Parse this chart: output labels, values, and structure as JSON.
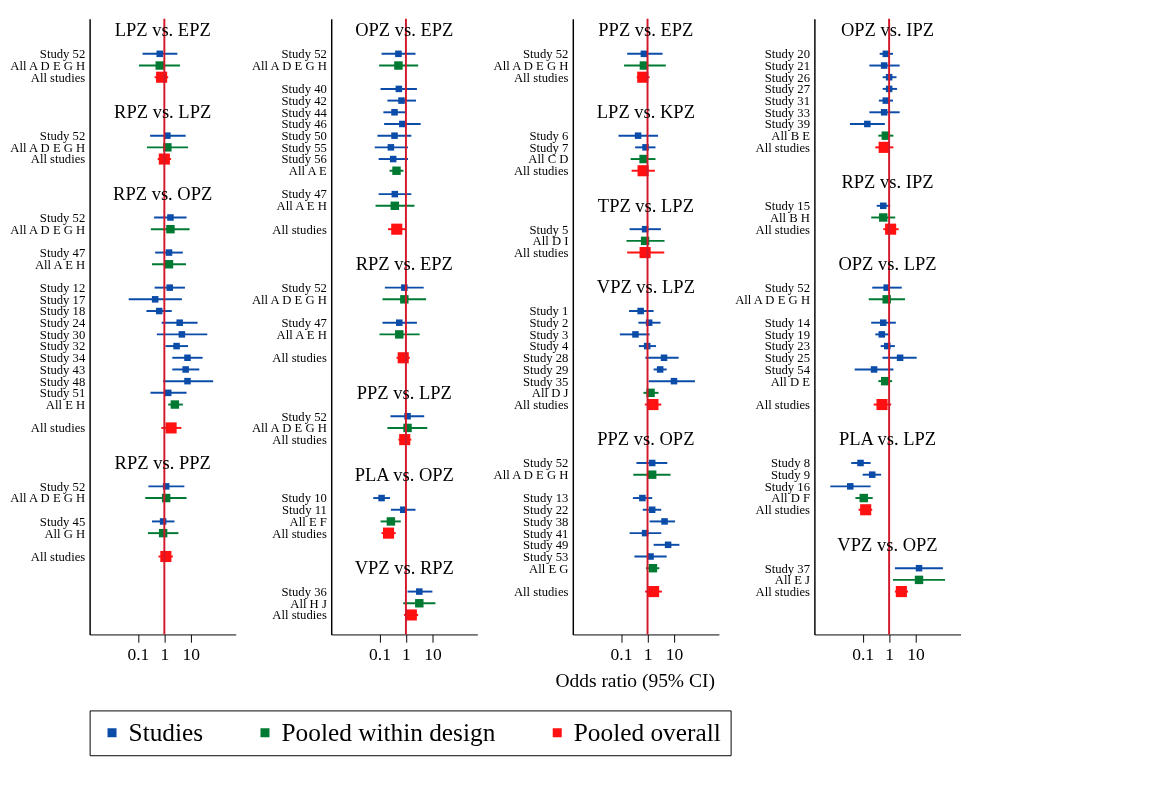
{
  "chart_data": [
    {
      "type": "scatter",
      "orientation": "horizontal",
      "log": "x",
      "marker": "square",
      "legend": "bottom",
      "xlim": [
        0.0015,
        500
      ],
      "xticks": [
        0.1,
        1,
        10
      ],
      "ref_lines": [
        {
          "axis": "x",
          "value": 1,
          "color": "#d2192b"
        }
      ],
      "annotations": [
        "LPZ vs. EPZ",
        "RPZ vs. LPZ",
        "RPZ vs. OPZ",
        "RPZ vs. PPZ"
      ],
      "categories": [
        null,
        null,
        "Study 52",
        "All A D E G H",
        "All studies",
        null,
        null,
        null,
        null,
        "Study 52",
        "All A D E G H",
        "All studies",
        null,
        null,
        null,
        null,
        "Study 52",
        "All A D E G H",
        null,
        "Study 47",
        "All A E H",
        null,
        "Study 12",
        "Study 17",
        "Study 18",
        "Study 24",
        "Study 30",
        "Study 32",
        "Study 34",
        "Study 43",
        "Study 48",
        "Study 51",
        "All E H",
        null,
        "All studies",
        null,
        null,
        null,
        null,
        "Study 52",
        "All A D E G H",
        null,
        "Study 45",
        "All G H",
        null,
        "All studies"
      ],
      "series": [
        {
          "name": "Studies",
          "color": "#0a4ca8",
          "values": [
            null,
            null,
            0.67,
            null,
            null,
            null,
            null,
            null,
            null,
            1.3,
            null,
            null,
            null,
            null,
            null,
            null,
            1.7,
            null,
            null,
            1.5,
            null,
            null,
            1.6,
            0.45,
            0.64,
            3.8,
            4.6,
            2.9,
            7.5,
            6.4,
            7.5,
            1.4,
            null,
            null,
            null,
            null,
            null,
            null,
            null,
            1.17,
            null,
            null,
            0.9,
            null,
            null,
            null
          ],
          "errors": [
            null,
            null,
            [
              0.15,
              3.1
            ],
            null,
            null,
            null,
            null,
            null,
            null,
            [
              0.29,
              6.4
            ],
            null,
            null,
            null,
            null,
            null,
            null,
            [
              0.41,
              6.9
            ],
            null,
            null,
            [
              0.45,
              5.0
            ],
            null,
            null,
            [
              0.43,
              6.0
            ],
            [
              0.045,
              4.6
            ],
            [
              0.21,
              1.9
            ],
            [
              0.79,
              18
            ],
            [
              0.52,
              42
            ],
            [
              1.1,
              7.9
            ],
            [
              2.0,
              28
            ],
            [
              2.0,
              21
            ],
            [
              0.9,
              70
            ],
            [
              0.3,
              6.9
            ],
            null,
            null,
            null,
            null,
            null,
            null,
            null,
            [
              0.25,
              5.7
            ],
            null,
            null,
            [
              0.34,
              2.4
            ],
            null,
            null,
            null
          ]
        },
        {
          "name": "Pooled within design",
          "color": "#007a33",
          "values": [
            null,
            null,
            null,
            0.67,
            null,
            null,
            null,
            null,
            null,
            null,
            1.3,
            null,
            null,
            null,
            null,
            null,
            null,
            1.7,
            null,
            null,
            1.5,
            null,
            null,
            null,
            null,
            null,
            null,
            null,
            null,
            null,
            null,
            null,
            2.5,
            null,
            null,
            null,
            null,
            null,
            null,
            null,
            1.17,
            null,
            null,
            0.9,
            null,
            null
          ],
          "errors": [
            null,
            null,
            null,
            [
              0.11,
              3.9
            ],
            null,
            null,
            null,
            null,
            null,
            null,
            [
              0.22,
              7.9
            ],
            null,
            null,
            null,
            null,
            null,
            null,
            [
              0.31,
              9.0
            ],
            null,
            null,
            [
              0.34,
              6.6
            ],
            null,
            null,
            null,
            null,
            null,
            null,
            null,
            null,
            null,
            null,
            null,
            [
              1.4,
              5.0
            ],
            null,
            null,
            null,
            null,
            null,
            null,
            null,
            [
              0.19,
              6.9
            ],
            null,
            null,
            [
              0.24,
              3.4
            ],
            null,
            null
          ]
        },
        {
          "name": "Pooled overall",
          "color": "#ff1111",
          "values": [
            null,
            null,
            null,
            null,
            0.79,
            null,
            null,
            null,
            null,
            null,
            null,
            1.0,
            null,
            null,
            null,
            null,
            null,
            null,
            null,
            null,
            null,
            null,
            null,
            null,
            null,
            null,
            null,
            null,
            null,
            null,
            null,
            null,
            null,
            null,
            1.8,
            null,
            null,
            null,
            null,
            null,
            null,
            null,
            null,
            null,
            null,
            1.14
          ],
          "errors": [
            null,
            null,
            null,
            null,
            [
              0.43,
              1.4
            ],
            null,
            null,
            null,
            null,
            null,
            null,
            [
              0.56,
              1.8
            ],
            null,
            null,
            null,
            null,
            null,
            null,
            null,
            null,
            null,
            null,
            null,
            null,
            null,
            null,
            null,
            null,
            null,
            null,
            null,
            null,
            null,
            null,
            [
              0.77,
              4.4
            ],
            null,
            null,
            null,
            null,
            null,
            null,
            null,
            null,
            null,
            null,
            [
              0.6,
              2.1
            ]
          ]
        }
      ]
    },
    {
      "type": "scatter",
      "orientation": "horizontal",
      "log": "x",
      "marker": "square",
      "legend": "bottom",
      "xlabel": "Odds ratio (95% CI)",
      "xlim": [
        0.0015,
        500
      ],
      "xticks": [
        0.1,
        1,
        10
      ],
      "ref_lines": [
        {
          "axis": "x",
          "value": 1,
          "color": "#d2192b"
        }
      ],
      "annotations": [
        "OPZ vs. EPZ",
        "RPZ vs. EPZ",
        "PPZ vs. LPZ",
        "PLA vs. OPZ",
        "VPZ vs. RPZ"
      ],
      "categories": [
        null,
        null,
        "Study 52",
        "All A D E G H",
        null,
        "Study 40",
        "Study 42",
        "Study 44",
        "Study 46",
        "Study 50",
        "Study 55",
        "Study 56",
        "All A E",
        null,
        "Study 47",
        "All A E H",
        null,
        "All studies",
        null,
        null,
        null,
        null,
        "Study 52",
        "All A D E G H",
        null,
        "Study 47",
        "All A E H",
        null,
        "All studies",
        null,
        null,
        null,
        null,
        "Study 52",
        "All A D E G H",
        "All studies",
        null,
        null,
        null,
        null,
        "Study 10",
        "Study 11",
        "All E F",
        "All studies",
        null,
        null,
        null,
        null,
        "Study 36",
        "All H J",
        "All studies"
      ],
      "series": [
        {
          "name": "Studies",
          "color": "#0a4ca8",
          "values": [
            null,
            null,
            0.52,
            null,
            null,
            0.54,
            0.68,
            0.37,
            0.73,
            0.37,
            0.27,
            0.33,
            null,
            null,
            0.38,
            null,
            null,
            null,
            null,
            null,
            null,
            null,
            0.87,
            null,
            null,
            0.56,
            null,
            null,
            null,
            null,
            null,
            null,
            null,
            1.15,
            null,
            null,
            null,
            null,
            null,
            null,
            0.12,
            0.79,
            null,
            null,
            null,
            null,
            null,
            null,
            3.2,
            null,
            null
          ],
          "errors": [
            null,
            null,
            [
              0.12,
              2.3
            ],
            null,
            null,
            [
              0.11,
              2.6
            ],
            [
              0.2,
              2.4
            ],
            [
              0.14,
              1.0
            ],
            [
              0.15,
              3.6
            ],
            [
              0.084,
              1.6
            ],
            [
              0.066,
              1.2
            ],
            [
              0.093,
              1.2
            ],
            null,
            null,
            [
              0.093,
              1.6
            ],
            null,
            null,
            null,
            null,
            null,
            null,
            null,
            [
              0.16,
              4.7
            ],
            null,
            null,
            [
              0.13,
              2.6
            ],
            null,
            null,
            null,
            null,
            null,
            null,
            null,
            [
              0.26,
              4.9
            ],
            null,
            null,
            null,
            null,
            null,
            null,
            [
              0.058,
              0.25
            ],
            [
              0.27,
              2.3
            ],
            null,
            null,
            null,
            null,
            null,
            null,
            [
              1.15,
              10
            ],
            null,
            null
          ]
        },
        {
          "name": "Pooled within design",
          "color": "#007a33",
          "values": [
            null,
            null,
            null,
            0.52,
            null,
            null,
            null,
            null,
            null,
            null,
            null,
            null,
            0.44,
            null,
            null,
            0.38,
            null,
            null,
            null,
            null,
            null,
            null,
            null,
            0.87,
            null,
            null,
            0.56,
            null,
            null,
            null,
            null,
            null,
            null,
            null,
            1.15,
            null,
            null,
            null,
            null,
            null,
            null,
            null,
            0.27,
            null,
            null,
            null,
            null,
            null,
            null,
            3.2,
            null
          ],
          "errors": [
            null,
            null,
            null,
            [
              0.097,
              2.9
            ],
            null,
            null,
            null,
            null,
            null,
            null,
            null,
            null,
            [
              0.24,
              0.81
            ],
            null,
            null,
            [
              0.071,
              2.1
            ],
            null,
            null,
            null,
            null,
            null,
            null,
            null,
            [
              0.13,
              5.8
            ],
            null,
            null,
            [
              0.1,
              3.3
            ],
            null,
            null,
            null,
            null,
            null,
            null,
            null,
            [
              0.2,
              6.4
            ],
            null,
            null,
            null,
            null,
            null,
            null,
            null,
            [
              0.11,
              0.64
            ],
            null,
            null,
            null,
            null,
            null,
            null,
            [
              0.79,
              13
            ],
            null
          ]
        },
        {
          "name": "Pooled overall",
          "color": "#ff1111",
          "values": [
            null,
            null,
            null,
            null,
            null,
            null,
            null,
            null,
            null,
            null,
            null,
            null,
            null,
            null,
            null,
            null,
            null,
            0.45,
            null,
            null,
            null,
            null,
            null,
            null,
            null,
            null,
            null,
            null,
            0.79,
            null,
            null,
            null,
            null,
            null,
            null,
            0.9,
            null,
            null,
            null,
            null,
            null,
            null,
            null,
            0.22,
            null,
            null,
            null,
            null,
            null,
            null,
            1.6
          ],
          "errors": [
            null,
            null,
            null,
            null,
            null,
            null,
            null,
            null,
            null,
            null,
            null,
            null,
            null,
            null,
            null,
            null,
            null,
            [
              0.21,
              0.97
            ],
            null,
            null,
            null,
            null,
            null,
            null,
            null,
            null,
            null,
            null,
            [
              0.44,
              1.4
            ],
            null,
            null,
            null,
            null,
            null,
            null,
            [
              0.52,
              1.6
            ],
            null,
            null,
            null,
            null,
            null,
            null,
            null,
            [
              0.12,
              0.41
            ],
            null,
            null,
            null,
            null,
            null,
            null,
            [
              0.84,
              2.9
            ]
          ]
        }
      ]
    },
    {
      "type": "scatter",
      "orientation": "horizontal",
      "log": "x",
      "marker": "square",
      "legend": "bottom",
      "xlim": [
        0.0015,
        500
      ],
      "xticks": [
        0.1,
        1,
        10
      ],
      "ref_lines": [
        {
          "axis": "x",
          "value": 1,
          "color": "#d2192b"
        }
      ],
      "annotations": [
        "PPZ vs. EPZ",
        "LPZ vs. KPZ",
        "TPZ vs. LPZ",
        "VPZ vs. LPZ",
        "PPZ vs. OPZ"
      ],
      "categories": [
        null,
        null,
        "Study 52",
        "All A D E G H",
        "All studies",
        null,
        null,
        null,
        null,
        "Study 6",
        "Study 7",
        "All C D",
        "All studies",
        null,
        null,
        null,
        null,
        "Study 5",
        "All D I",
        "All studies",
        null,
        null,
        null,
        null,
        "Study 1",
        "Study 2",
        "Study 3",
        "Study 4",
        "Study 28",
        "Study 29",
        "Study 35",
        "All D J",
        "All studies",
        null,
        null,
        null,
        null,
        "Study 52",
        "All A D E G H",
        null,
        "Study 13",
        "Study 22",
        "Study 38",
        "Study 41",
        "Study 49",
        "Study 53",
        "All E G",
        null,
        "All studies"
      ],
      "series": [
        {
          "name": "Studies",
          "color": "#0a4ca8",
          "values": [
            null,
            null,
            0.73,
            null,
            null,
            null,
            null,
            null,
            null,
            0.44,
            0.84,
            null,
            null,
            null,
            null,
            null,
            null,
            0.81,
            null,
            null,
            null,
            null,
            null,
            null,
            0.55,
            1.15,
            0.35,
            0.97,
            4.2,
            3.0,
            10,
            null,
            null,
            null,
            null,
            null,
            null,
            1.5,
            null,
            null,
            0.64,
            1.5,
            4.4,
            0.81,
            6.0,
            1.3,
            null,
            null,
            null
          ],
          "errors": [
            null,
            null,
            [
              0.17,
              3.7
            ],
            null,
            null,
            null,
            null,
            null,
            null,
            [
              0.08,
              2.5
            ],
            [
              0.34,
              2.0
            ],
            null,
            null,
            null,
            null,
            null,
            null,
            [
              0.21,
              3.2
            ],
            null,
            null,
            null,
            null,
            null,
            null,
            [
              0.2,
              1.7
            ],
            [
              0.45,
              3.1
            ],
            [
              0.09,
              1.2
            ],
            [
              0.47,
              2.1
            ],
            [
              0.83,
              15
            ],
            [
              1.7,
              5.3
            ],
            [
              1.1,
              62
            ],
            null,
            null,
            null,
            null,
            null,
            null,
            [
              0.38,
              5.6
            ],
            null,
            null,
            [
              0.28,
              1.5
            ],
            [
              0.66,
              3.3
            ],
            [
              1.2,
              11
            ],
            [
              0.21,
              3.3
            ],
            [
              1.7,
              16
            ],
            [
              0.32,
              5.3
            ],
            null,
            null,
            null
          ]
        },
        {
          "name": "Pooled within design",
          "color": "#007a33",
          "values": [
            null,
            null,
            null,
            0.73,
            null,
            null,
            null,
            null,
            null,
            null,
            null,
            0.71,
            null,
            null,
            null,
            null,
            null,
            null,
            0.81,
            null,
            null,
            null,
            null,
            null,
            null,
            null,
            null,
            null,
            null,
            null,
            null,
            1.3,
            null,
            null,
            null,
            null,
            null,
            null,
            1.5,
            null,
            null,
            null,
            null,
            null,
            null,
            null,
            1.6,
            null,
            null
          ],
          "errors": [
            null,
            null,
            null,
            [
              0.13,
              4.9
            ],
            null,
            null,
            null,
            null,
            null,
            null,
            null,
            [
              0.23,
              2.0
            ],
            null,
            null,
            null,
            null,
            null,
            null,
            [
              0.16,
              4.4
            ],
            null,
            null,
            null,
            null,
            null,
            null,
            null,
            null,
            null,
            null,
            null,
            null,
            [
              0.7,
              2.6
            ],
            null,
            null,
            null,
            null,
            null,
            null,
            [
              0.29,
              7.4
            ],
            null,
            null,
            null,
            null,
            null,
            null,
            null,
            [
              0.87,
              2.8
            ],
            null,
            null
          ]
        },
        {
          "name": "Pooled overall",
          "color": "#ff1111",
          "values": [
            null,
            null,
            null,
            null,
            0.66,
            null,
            null,
            null,
            null,
            null,
            null,
            null,
            0.68,
            null,
            null,
            null,
            null,
            null,
            null,
            0.81,
            null,
            null,
            null,
            null,
            null,
            null,
            null,
            null,
            null,
            null,
            null,
            null,
            1.6,
            null,
            null,
            null,
            null,
            null,
            null,
            null,
            null,
            null,
            null,
            null,
            null,
            null,
            null,
            null,
            1.7
          ],
          "errors": [
            null,
            null,
            null,
            null,
            [
              0.39,
              1.2
            ],
            null,
            null,
            null,
            null,
            null,
            null,
            null,
            [
              0.25,
              1.9
            ],
            null,
            null,
            null,
            null,
            null,
            null,
            [
              0.17,
              4.3
            ],
            null,
            null,
            null,
            null,
            null,
            null,
            null,
            null,
            null,
            null,
            null,
            null,
            [
              0.79,
              3.3
            ],
            null,
            null,
            null,
            null,
            null,
            null,
            null,
            null,
            null,
            null,
            null,
            null,
            null,
            null,
            null,
            [
              0.81,
              3.5
            ]
          ]
        }
      ]
    },
    {
      "type": "scatter",
      "orientation": "horizontal",
      "log": "x",
      "marker": "square",
      "legend": "bottom",
      "xlim": [
        0.0015,
        500
      ],
      "xticks": [
        0.1,
        1,
        10
      ],
      "ref_lines": [
        {
          "axis": "x",
          "value": 1,
          "color": "#d2192b"
        }
      ],
      "annotations": [
        "OPZ vs. IPZ",
        "RPZ vs. IPZ",
        "OPZ vs. LPZ",
        "PLA vs. LPZ",
        "VPZ vs. OPZ"
      ],
      "categories": [
        null,
        null,
        "Study 20",
        "Study 21",
        "Study 26",
        "Study 27",
        "Study 31",
        "Study 33",
        "Study 39",
        "All B E",
        "All studies",
        null,
        null,
        null,
        null,
        "Study 15",
        "All B H",
        "All studies",
        null,
        null,
        null,
        null,
        "Study 52",
        "All A D E G H",
        null,
        "Study 14",
        "Study 19",
        "Study 23",
        "Study 25",
        "Study 54",
        "All D E",
        null,
        "All studies",
        null,
        null,
        null,
        null,
        "Study 8",
        "Study 9",
        "Study 16",
        "All D F",
        "All studies",
        null,
        null,
        null,
        null,
        "Study 37",
        "All E J",
        "All studies"
      ],
      "series": [
        {
          "name": "Studies",
          "color": "#0a4ca8",
          "values": [
            null,
            null,
            0.75,
            0.65,
            1.0,
            1.0,
            0.75,
            0.65,
            0.15,
            null,
            null,
            null,
            null,
            null,
            null,
            0.6,
            null,
            null,
            null,
            null,
            null,
            null,
            0.81,
            null,
            null,
            0.6,
            0.53,
            0.85,
            2.6,
            0.27,
            null,
            null,
            null,
            null,
            null,
            null,
            null,
            0.083,
            0.23,
            0.034,
            null,
            null,
            null,
            null,
            null,
            null,
            13.5,
            null,
            null
          ],
          "errors": [
            null,
            null,
            [
              0.44,
              1.4
            ],
            [
              0.18,
              2.5
            ],
            [
              0.57,
              1.9
            ],
            [
              0.57,
              2.0
            ],
            [
              0.41,
              1.4
            ],
            [
              0.18,
              2.5
            ],
            [
              0.033,
              0.69
            ],
            null,
            null,
            null,
            null,
            null,
            null,
            [
              0.34,
              1.1
            ],
            null,
            null,
            null,
            null,
            null,
            null,
            [
              0.23,
              3.0
            ],
            null,
            null,
            [
              0.21,
              1.8
            ],
            [
              0.3,
              0.97
            ],
            [
              0.48,
              1.65
            ],
            [
              0.56,
              11
            ],
            [
              0.05,
              1.45
            ],
            null,
            null,
            null,
            null,
            null,
            null,
            null,
            [
              0.037,
              0.2
            ],
            [
              0.1,
              0.5
            ],
            [
              0.006,
              0.2
            ],
            null,
            null,
            null,
            null,
            null,
            null,
            [
              1.65,
              108
            ],
            null,
            null
          ]
        },
        {
          "name": "Pooled within design",
          "color": "#007a33",
          "values": [
            null,
            null,
            null,
            null,
            null,
            null,
            null,
            null,
            null,
            0.75,
            null,
            null,
            null,
            null,
            null,
            null,
            0.6,
            null,
            null,
            null,
            null,
            null,
            null,
            0.81,
            null,
            null,
            null,
            null,
            null,
            null,
            0.71,
            null,
            null,
            null,
            null,
            null,
            null,
            null,
            null,
            null,
            0.11,
            null,
            null,
            null,
            null,
            null,
            null,
            13.5,
            null
          ],
          "errors": [
            null,
            null,
            null,
            null,
            null,
            null,
            null,
            null,
            null,
            [
              0.39,
              1.45
            ],
            null,
            null,
            null,
            null,
            null,
            null,
            [
              0.21,
              1.7
            ],
            null,
            null,
            null,
            null,
            null,
            null,
            [
              0.17,
              4.0
            ],
            null,
            null,
            null,
            null,
            null,
            null,
            [
              0.39,
              1.3
            ],
            null,
            null,
            null,
            null,
            null,
            null,
            null,
            null,
            null,
            [
              0.053,
              0.24
            ],
            null,
            null,
            null,
            null,
            null,
            null,
            [
              1.4,
              130
            ],
            null
          ]
        },
        {
          "name": "Pooled overall",
          "color": "#ff1111",
          "values": [
            null,
            null,
            null,
            null,
            null,
            null,
            null,
            null,
            null,
            null,
            0.65,
            null,
            null,
            null,
            null,
            null,
            null,
            1.14,
            null,
            null,
            null,
            null,
            null,
            null,
            null,
            null,
            null,
            null,
            null,
            null,
            null,
            null,
            0.54,
            null,
            null,
            null,
            null,
            null,
            null,
            null,
            null,
            0.13,
            null,
            null,
            null,
            null,
            null,
            null,
            2.9
          ],
          "errors": [
            null,
            null,
            null,
            null,
            null,
            null,
            null,
            null,
            null,
            null,
            [
              0.3,
              1.45
            ],
            null,
            null,
            null,
            null,
            null,
            null,
            [
              0.6,
              2.3
            ],
            null,
            null,
            null,
            null,
            null,
            null,
            null,
            null,
            null,
            null,
            null,
            null,
            null,
            null,
            [
              0.26,
              1.2
            ],
            null,
            null,
            null,
            null,
            null,
            null,
            null,
            null,
            [
              0.07,
              0.23
            ],
            null,
            null,
            null,
            null,
            null,
            null,
            [
              1.65,
              5.2
            ]
          ]
        }
      ]
    }
  ]
}
